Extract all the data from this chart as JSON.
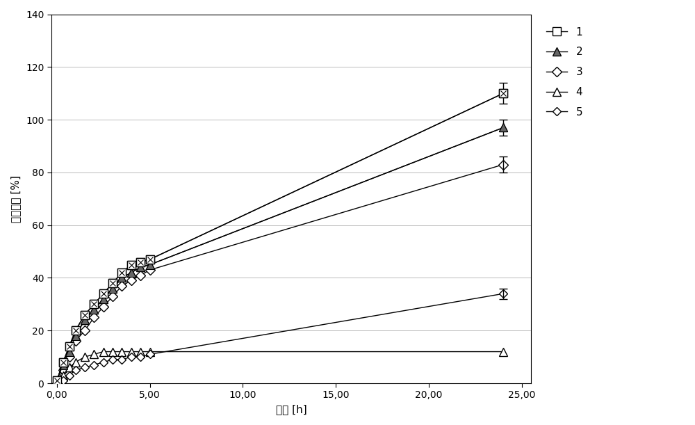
{
  "xlabel": "时间 [h]",
  "ylabel": "体积增加 [%]",
  "xlim": [
    -0.3,
    25.5
  ],
  "ylim": [
    0,
    140
  ],
  "xticks": [
    0,
    5,
    10,
    15,
    20,
    25
  ],
  "xticklabels": [
    "0,00",
    "5,00",
    "10,00",
    "15,00",
    "20,00",
    "25,00"
  ],
  "yticks": [
    0,
    20,
    40,
    60,
    80,
    100,
    120,
    140
  ],
  "series": [
    {
      "label": "1",
      "x": [
        0,
        0.33,
        0.67,
        1.0,
        1.5,
        2.0,
        2.5,
        3.0,
        3.5,
        4.0,
        4.5,
        5.0,
        24.0
      ],
      "y": [
        1,
        8,
        14,
        20,
        26,
        30,
        34,
        38,
        42,
        45,
        46,
        47,
        110
      ],
      "yerr_last": 4,
      "marker": "s",
      "hatch": true,
      "color": "#000000",
      "markersize": 8,
      "markerfacecolor": "white"
    },
    {
      "label": "2",
      "x": [
        0,
        0.33,
        0.67,
        1.0,
        1.5,
        2.0,
        2.5,
        3.0,
        3.5,
        4.0,
        4.5,
        5.0,
        24.0
      ],
      "y": [
        1,
        7,
        12,
        18,
        24,
        28,
        32,
        36,
        40,
        42,
        44,
        45,
        97
      ],
      "yerr_last": 3,
      "marker": "^",
      "hatch": false,
      "color": "#000000",
      "markersize": 8,
      "markerfacecolor": "#555555"
    },
    {
      "label": "3",
      "x": [
        0,
        0.33,
        0.67,
        1.0,
        1.5,
        2.0,
        2.5,
        3.0,
        3.5,
        4.0,
        4.5,
        5.0,
        24.0
      ],
      "y": [
        0,
        5,
        10,
        16,
        20,
        25,
        29,
        33,
        37,
        39,
        41,
        43,
        83
      ],
      "yerr_last": 3,
      "marker": "D",
      "hatch": false,
      "color": "#000000",
      "markersize": 7,
      "markerfacecolor": "white"
    },
    {
      "label": "4",
      "x": [
        0,
        0.33,
        0.67,
        1.0,
        1.5,
        2.0,
        2.5,
        3.0,
        3.5,
        4.0,
        4.5,
        5.0,
        24.0
      ],
      "y": [
        0,
        3,
        6,
        8,
        10,
        11,
        12,
        12,
        12,
        12,
        12,
        12,
        12
      ],
      "yerr_last": null,
      "marker": "^",
      "hatch": false,
      "color": "#000000",
      "markersize": 8,
      "markerfacecolor": "white"
    },
    {
      "label": "5",
      "x": [
        0,
        0.33,
        0.67,
        1.0,
        1.5,
        2.0,
        2.5,
        3.0,
        3.5,
        4.0,
        4.5,
        5.0,
        24.0
      ],
      "y": [
        0,
        1,
        3,
        5,
        6,
        7,
        8,
        9,
        9,
        10,
        10,
        11,
        34
      ],
      "yerr_last": 2,
      "marker": "D",
      "hatch": false,
      "color": "#000000",
      "markersize": 6,
      "markerfacecolor": "white"
    }
  ],
  "fig_width": 10.0,
  "fig_height": 6.11,
  "dpi": 100,
  "bg_color": "#ffffff",
  "grid_color": "#bbbbbb",
  "spine_color": "#000000"
}
